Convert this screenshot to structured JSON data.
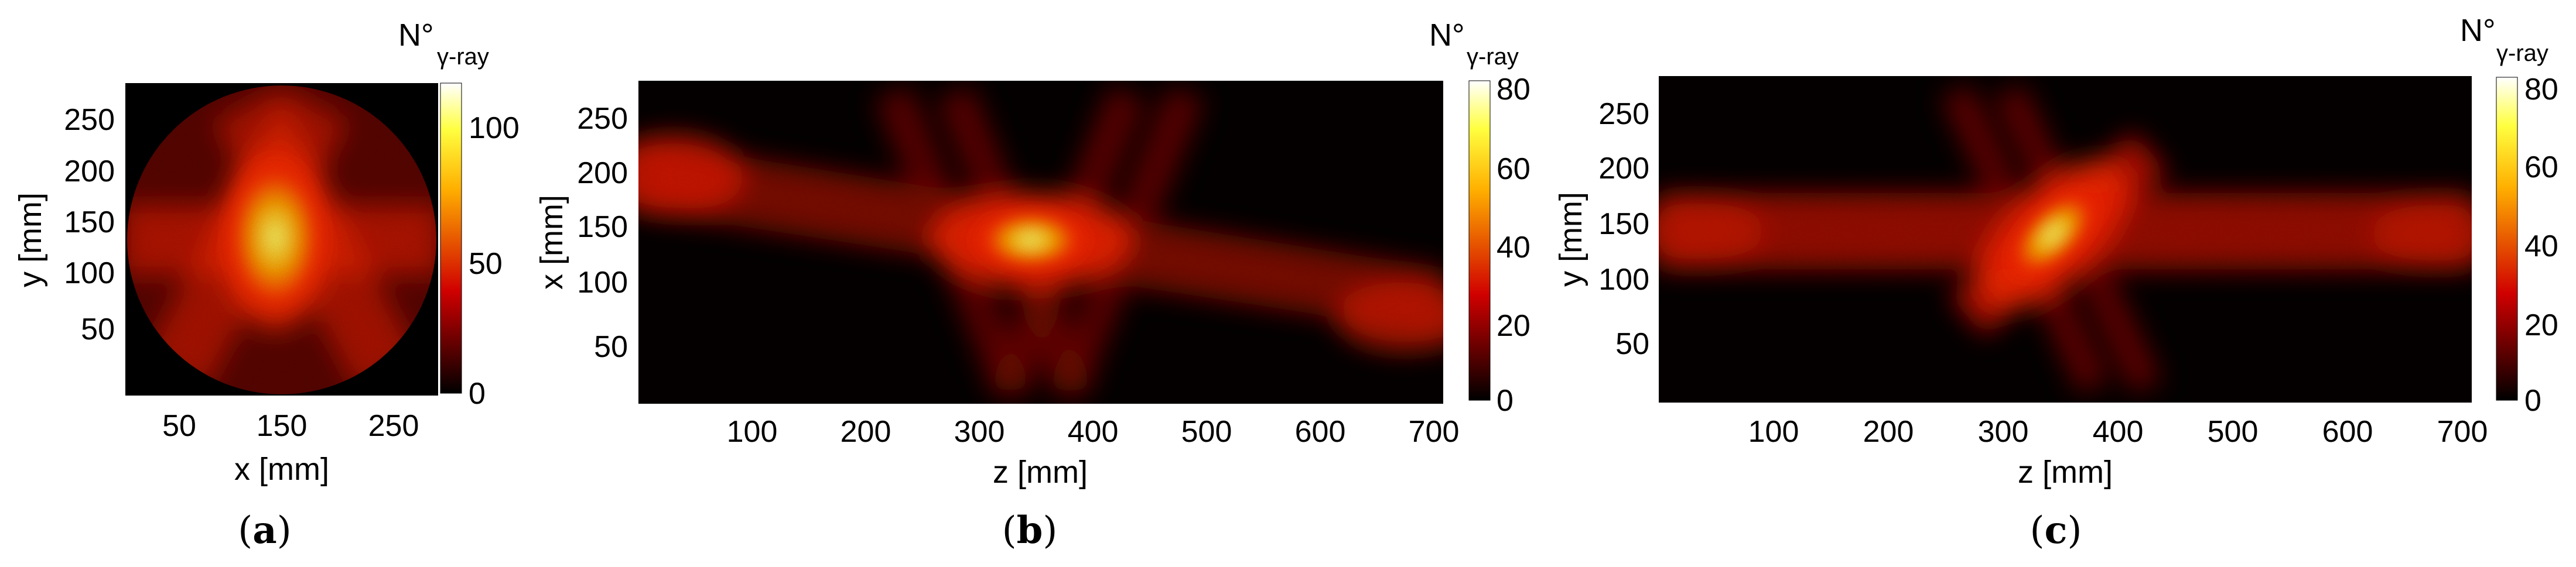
{
  "figure": {
    "panels": [
      {
        "id": "a",
        "label_open": "(",
        "label_letter": "a",
        "label_close": ")"
      },
      {
        "id": "b",
        "label_open": "(",
        "label_letter": "b",
        "label_close": ")"
      },
      {
        "id": "c",
        "label_open": "(",
        "label_letter": "c",
        "label_close": ")"
      }
    ]
  },
  "chart_data": [
    {
      "type": "heatmap",
      "panel": "a",
      "title": "",
      "xlabel": "x [mm]",
      "ylabel": "y [mm]",
      "xlim": [
        0,
        288
      ],
      "ylim": [
        0,
        288
      ],
      "xticks": [
        50,
        150,
        250
      ],
      "yticks": [
        50,
        100,
        150,
        200,
        250
      ],
      "mask": "circle",
      "colorbar": {
        "title_main": "N°",
        "title_sub": "γ-ray",
        "range": [
          0,
          115
        ],
        "ticks": [
          0,
          50,
          100
        ]
      },
      "colormap": "hot",
      "description_of_features": [
        "central hot spot",
        "crossing diagonal beams",
        "horizontal band"
      ],
      "hotspot": {
        "x": 140,
        "y": 140,
        "value": 115
      }
    },
    {
      "type": "heatmap",
      "panel": "b",
      "title": "",
      "xlabel": "z [mm]",
      "ylabel": "x [mm]",
      "xlim": [
        0,
        710
      ],
      "ylim": [
        0,
        288
      ],
      "xticks": [
        100,
        200,
        300,
        400,
        500,
        600,
        700
      ],
      "yticks": [
        50,
        100,
        150,
        200,
        250
      ],
      "colorbar": {
        "title_main": "N°",
        "title_sub": "γ-ray",
        "range": [
          0,
          82
        ],
        "ticks": [
          0,
          20,
          40,
          60,
          80
        ]
      },
      "colormap": "hot",
      "hotspot": {
        "x": 350,
        "y": 145,
        "value": 82
      }
    },
    {
      "type": "heatmap",
      "panel": "c",
      "title": "",
      "xlabel": "z [mm]",
      "ylabel": "y [mm]",
      "xlim": [
        0,
        710
      ],
      "ylim": [
        0,
        288
      ],
      "xticks": [
        100,
        200,
        300,
        400,
        500,
        600,
        700
      ],
      "yticks": [
        50,
        100,
        150,
        200,
        250
      ],
      "colorbar": {
        "title_main": "N°",
        "title_sub": "γ-ray",
        "range": [
          0,
          82
        ],
        "ticks": [
          0,
          20,
          40,
          60,
          80
        ]
      },
      "colormap": "hot",
      "hotspot": {
        "x": 350,
        "y": 140,
        "value": 82
      }
    }
  ],
  "colors": {
    "hot_black": "#000000",
    "hot_dark_red": "#3a0000",
    "hot_red": "#c81000",
    "hot_orange": "#ff7a00",
    "hot_yellow": "#ffff30",
    "hot_white": "#ffffff"
  }
}
